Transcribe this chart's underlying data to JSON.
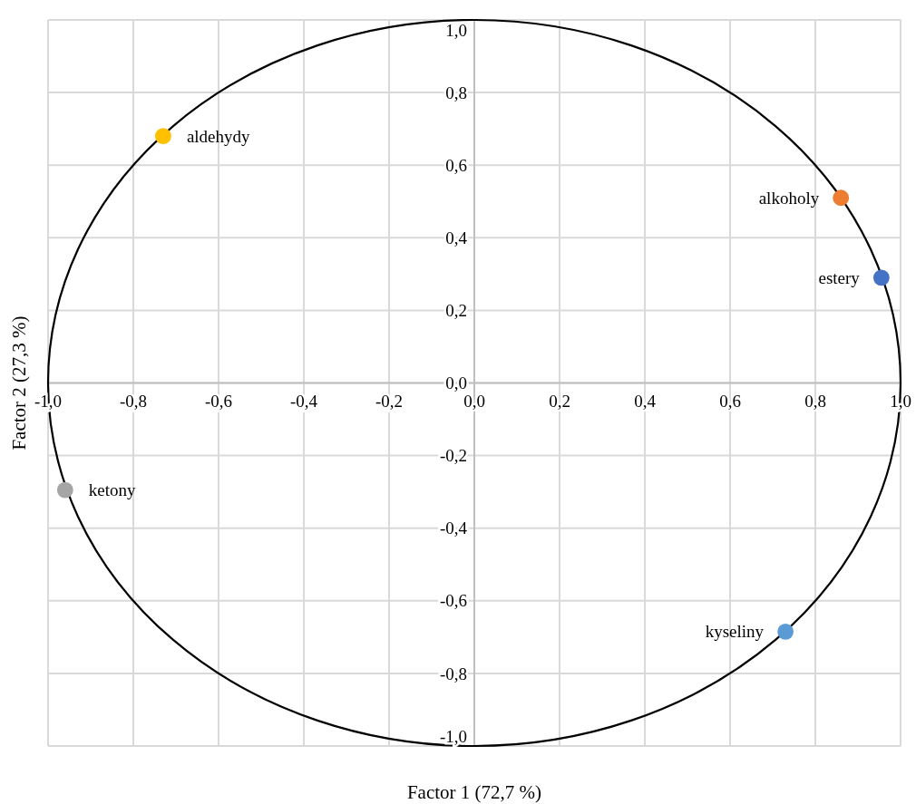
{
  "chart_data": {
    "type": "scatter",
    "xlabel": "Factor 1 (72,7 %)",
    "ylabel": "Factor 2 (27,3 %)",
    "xlim": [
      -1,
      1
    ],
    "ylim": [
      -1,
      1
    ],
    "xticks": [
      {
        "value": -1,
        "label": "-1,0"
      },
      {
        "value": -0.8,
        "label": "-0,8"
      },
      {
        "value": -0.6,
        "label": "-0,6"
      },
      {
        "value": -0.4,
        "label": "-0,4"
      },
      {
        "value": -0.2,
        "label": "-0,2"
      },
      {
        "value": 0,
        "label": "0,0"
      },
      {
        "value": 0.2,
        "label": "0,2"
      },
      {
        "value": 0.4,
        "label": "0,4"
      },
      {
        "value": 0.6,
        "label": "0,6"
      },
      {
        "value": 0.8,
        "label": "0,8"
      },
      {
        "value": 1,
        "label": "1,0"
      }
    ],
    "yticks": [
      {
        "value": -1,
        "label": "-1,0"
      },
      {
        "value": -0.8,
        "label": "-0,8"
      },
      {
        "value": -0.6,
        "label": "-0,6"
      },
      {
        "value": -0.4,
        "label": "-0,4"
      },
      {
        "value": -0.2,
        "label": "-0,2"
      },
      {
        "value": 0,
        "label": "0,0"
      },
      {
        "value": 0.2,
        "label": "0,2"
      },
      {
        "value": 0.4,
        "label": "0,4"
      },
      {
        "value": 0.6,
        "label": "0,6"
      },
      {
        "value": 0.8,
        "label": "0,8"
      },
      {
        "value": 1,
        "label": "1,0"
      }
    ],
    "grid": true,
    "legend": false,
    "marker": "circle",
    "series": [
      {
        "name": "aldehydy",
        "color": "#ffc000",
        "x": [
          -0.73
        ],
        "values": [
          0.68
        ]
      },
      {
        "name": "alkoholy",
        "color": "#ed7d31",
        "x": [
          0.86
        ],
        "values": [
          0.51
        ]
      },
      {
        "name": "estery",
        "color": "#4472c4",
        "x": [
          0.955
        ],
        "values": [
          0.29
        ]
      },
      {
        "name": "ketony",
        "color": "#a5a5a5",
        "x": [
          -0.96
        ],
        "values": [
          -0.295
        ]
      },
      {
        "name": "kyseliny",
        "color": "#5b9bd5",
        "x": [
          0.73
        ],
        "values": [
          -0.685
        ]
      }
    ]
  }
}
